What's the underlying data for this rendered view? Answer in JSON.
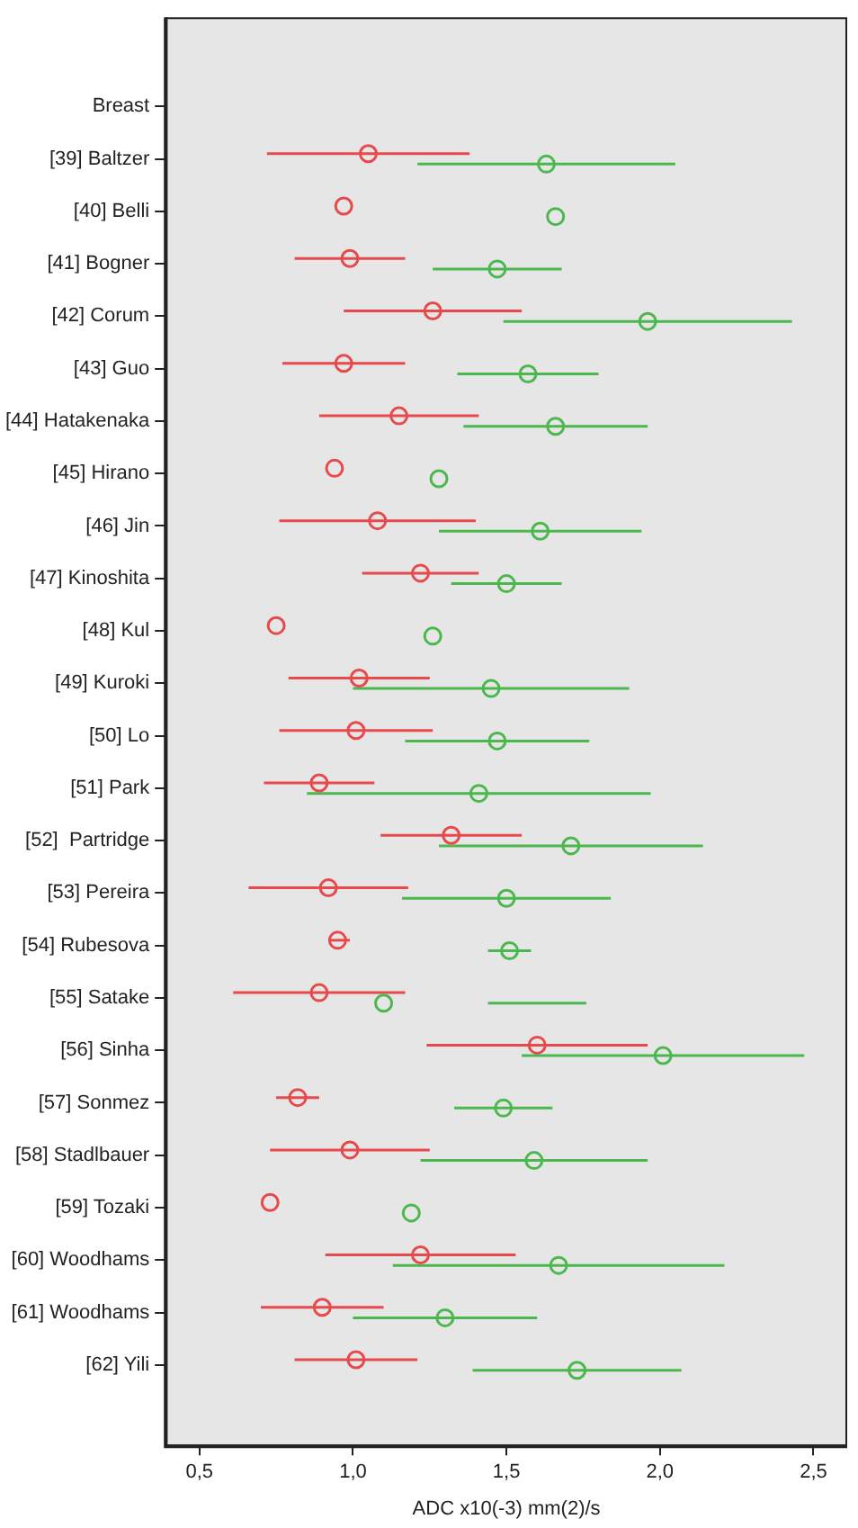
{
  "chart_data": {
    "type": "scatter",
    "orientation": "horizontal",
    "xlabel": "ADC x10(-3) mm(2)/s",
    "marker": "circle",
    "categories": [
      "Breast",
      "[39] Baltzer",
      "[40] Belli",
      "[41] Bogner",
      "[42] Corum",
      "[43] Guo",
      "[44] Hatakenaka",
      "[45] Hirano",
      "[46] Jin",
      "[47] Kinoshita",
      "[48] Kul",
      "[49] Kuroki",
      "[50] Lo",
      "[51] Park",
      "[52]  Partridge",
      "[53] Pereira",
      "[54] Rubesova",
      "[55] Satake",
      "[56] Sinha",
      "[57] Sonmez",
      "[58] Stadlbauer",
      "[59] Tozaki",
      "[60] Woodhams",
      "[61] Woodhams",
      "[62] Yili"
    ],
    "xlim": [
      0.39,
      2.61
    ],
    "xticks": [
      {
        "value": 0.5,
        "label": "0,5"
      },
      {
        "value": 1.0,
        "label": "1,0"
      },
      {
        "value": 1.5,
        "label": "1,5"
      },
      {
        "value": 2.0,
        "label": "2,0"
      },
      {
        "value": 2.5,
        "label": "2,5"
      }
    ],
    "series": [
      {
        "color": "#e8494b",
        "values": [
          null,
          1.05,
          0.97,
          0.99,
          1.26,
          0.97,
          1.15,
          0.94,
          1.08,
          1.22,
          0.75,
          1.02,
          1.01,
          0.89,
          1.32,
          0.92,
          0.95,
          0.89,
          1.6,
          0.82,
          0.99,
          0.73,
          1.22,
          0.9,
          1.01
        ],
        "errors": [
          null,
          [
            0.72,
            1.38
          ],
          null,
          [
            0.81,
            1.17
          ],
          [
            0.97,
            1.55
          ],
          [
            0.77,
            1.17
          ],
          [
            0.89,
            1.41
          ],
          null,
          [
            0.76,
            1.4
          ],
          [
            1.03,
            1.41
          ],
          null,
          [
            0.79,
            1.25
          ],
          [
            0.76,
            1.26
          ],
          [
            0.71,
            1.07
          ],
          [
            1.09,
            1.55
          ],
          [
            0.66,
            1.18
          ],
          [
            0.92,
            0.99
          ],
          [
            0.61,
            1.17
          ],
          [
            1.24,
            1.96
          ],
          [
            0.75,
            0.89
          ],
          [
            0.73,
            1.25
          ],
          null,
          [
            0.91,
            1.53
          ],
          [
            0.7,
            1.1
          ],
          [
            0.81,
            1.21
          ]
        ]
      },
      {
        "color": "#4bb84e",
        "values": [
          null,
          1.63,
          1.66,
          1.47,
          1.96,
          1.57,
          1.66,
          1.28,
          1.61,
          1.5,
          1.26,
          1.45,
          1.47,
          1.41,
          1.71,
          1.5,
          1.51,
          1.1,
          2.01,
          1.49,
          1.59,
          1.19,
          1.67,
          1.3,
          1.73
        ],
        "errors": [
          null,
          [
            1.21,
            2.05
          ],
          null,
          [
            1.26,
            1.68
          ],
          [
            1.49,
            2.43
          ],
          [
            1.34,
            1.8
          ],
          [
            1.36,
            1.96
          ],
          null,
          [
            1.28,
            1.94
          ],
          [
            1.32,
            1.68
          ],
          null,
          [
            1.0,
            1.9
          ],
          [
            1.17,
            1.77
          ],
          [
            0.85,
            1.97
          ],
          [
            1.28,
            2.14
          ],
          [
            1.16,
            1.84
          ],
          [
            1.44,
            1.58
          ],
          [
            1.44,
            1.76
          ],
          [
            1.55,
            2.47
          ],
          [
            1.33,
            1.65
          ],
          [
            1.22,
            1.96
          ],
          null,
          [
            1.13,
            2.21
          ],
          [
            1.0,
            1.6
          ],
          [
            1.39,
            2.07
          ]
        ]
      }
    ]
  }
}
